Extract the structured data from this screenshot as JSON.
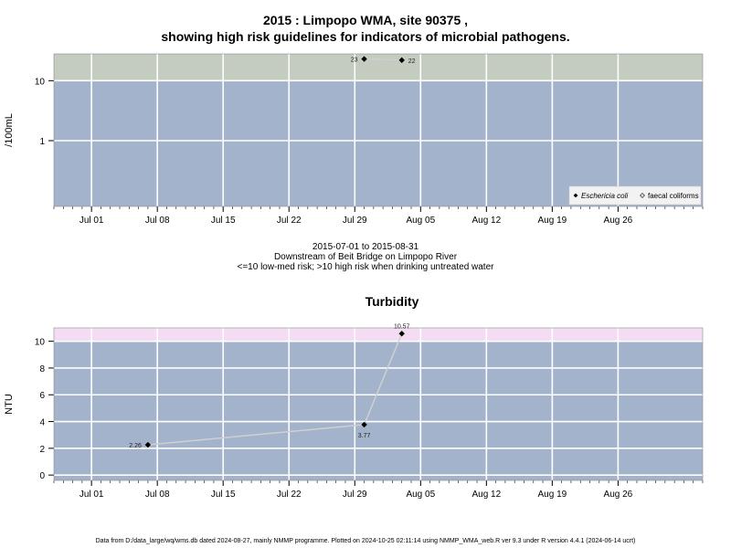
{
  "title_line1": "2015 : Limpopo WMA, site 90375 ,",
  "title_line2": "showing high risk guidelines for indicators of microbial pathogens.",
  "date_range": "2015-07-01 to 2015-08-31",
  "location": "Downstream of Beit Bridge on Limpopo River",
  "risk_note": "<=10 low-med risk; >10 high risk when drinking untreated water",
  "footer": "Data from D:/data_large/wq/wms.db dated 2024-08-27, mainly NMMP programme. Plotted on 2024-10-25 02:11:14 using NMMP_WMA_web.R ver 9.3 under R version 4.4.1 (2024-06-14 ucrt)",
  "colors": {
    "panel": "#a3b3cb",
    "high_micro": "#c3ccbe",
    "high_turb": "#f4dcf4",
    "grid": "#ffffff",
    "line": "#d0d0d0",
    "point": "#000000"
  },
  "chart_data": [
    {
      "type": "line",
      "title": "",
      "ylabel": "/100mL",
      "yscale": "log",
      "ylim": [
        0.08,
        28
      ],
      "xlim": [
        "2015-06-27",
        "2015-09-04"
      ],
      "x_ticks": [
        "Jul 01",
        "Jul 08",
        "Jul 15",
        "Jul 22",
        "Jul 29",
        "Aug 05",
        "Aug 12",
        "Aug 19",
        "Aug 26"
      ],
      "y_ticks": [
        "1",
        "10"
      ],
      "high_risk_threshold": 10,
      "legend": {
        "position": "bottom-right",
        "entries": [
          "Eschericia coli",
          "faecal coliforms"
        ]
      },
      "series": [
        {
          "name": "Eschericia coli",
          "marker": "filled-diamond",
          "x": [
            "2015-07-30",
            "2015-08-03"
          ],
          "values": [
            23,
            22
          ],
          "labels": [
            "23",
            "22"
          ]
        }
      ]
    },
    {
      "type": "line",
      "title": "Turbidity",
      "ylabel": "NTU",
      "yscale": "linear",
      "ylim": [
        -0.4,
        11
      ],
      "xlim": [
        "2015-06-27",
        "2015-09-04"
      ],
      "x_ticks": [
        "Jul 01",
        "Jul 08",
        "Jul 15",
        "Jul 22",
        "Jul 29",
        "Aug 05",
        "Aug 12",
        "Aug 19",
        "Aug 26"
      ],
      "y_ticks": [
        "0",
        "2",
        "4",
        "6",
        "8",
        "10"
      ],
      "high_risk_threshold": 10,
      "series": [
        {
          "name": "",
          "marker": "filled-diamond",
          "x": [
            "2015-07-07",
            "2015-07-30",
            "2015-08-03"
          ],
          "values": [
            2.26,
            3.77,
            10.57
          ],
          "labels": [
            "2.26",
            "3.77",
            "10.57"
          ]
        }
      ]
    }
  ]
}
